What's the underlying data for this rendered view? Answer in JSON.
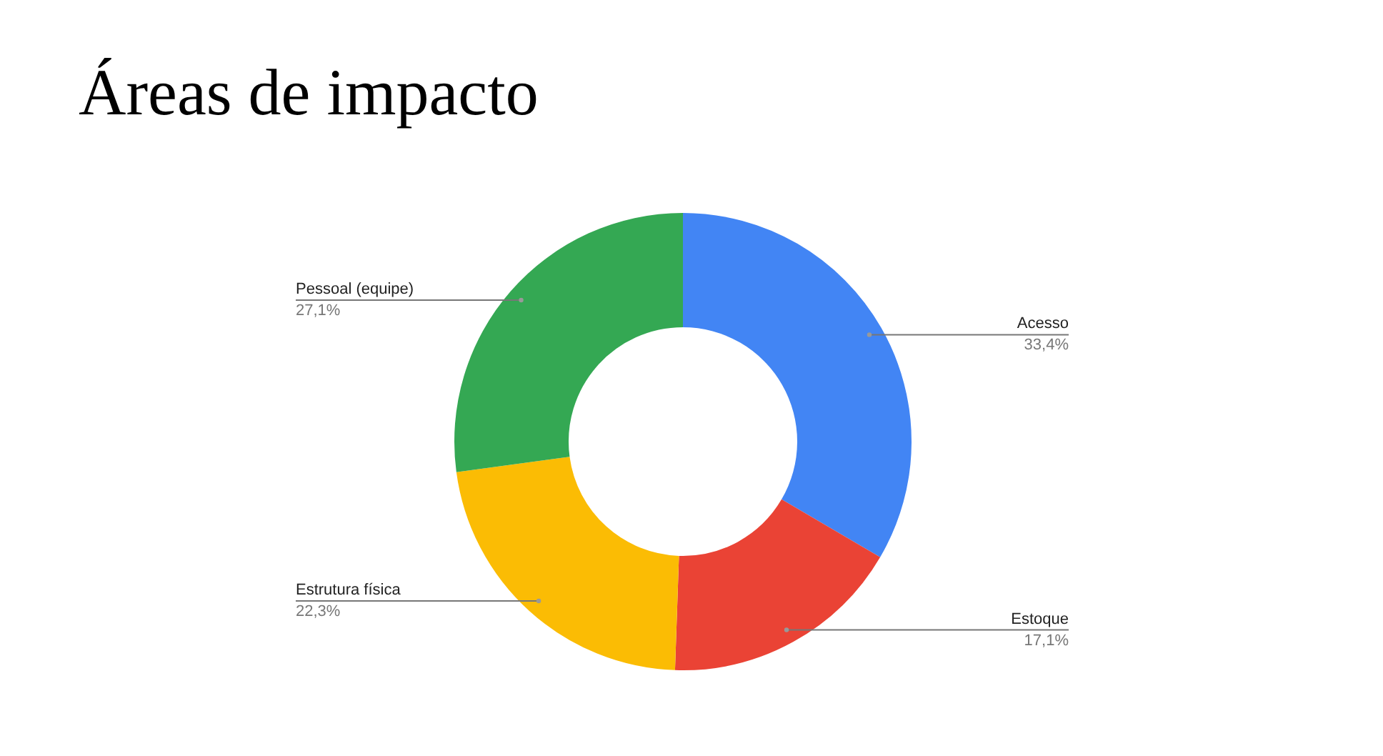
{
  "chart_data": {
    "type": "donut",
    "title": "Áreas de impacto",
    "categories": [
      "Acesso",
      "Estoque",
      "Estrutura física",
      "Pessoal (equipe)"
    ],
    "values": [
      33.4,
      17.1,
      22.3,
      27.1
    ],
    "colors": [
      "#4285f4",
      "#ea4335",
      "#fbbc04",
      "#34a853"
    ],
    "value_labels": [
      "33,4%",
      "17,1%",
      "22,3%",
      "27,1%"
    ],
    "legend": false
  }
}
